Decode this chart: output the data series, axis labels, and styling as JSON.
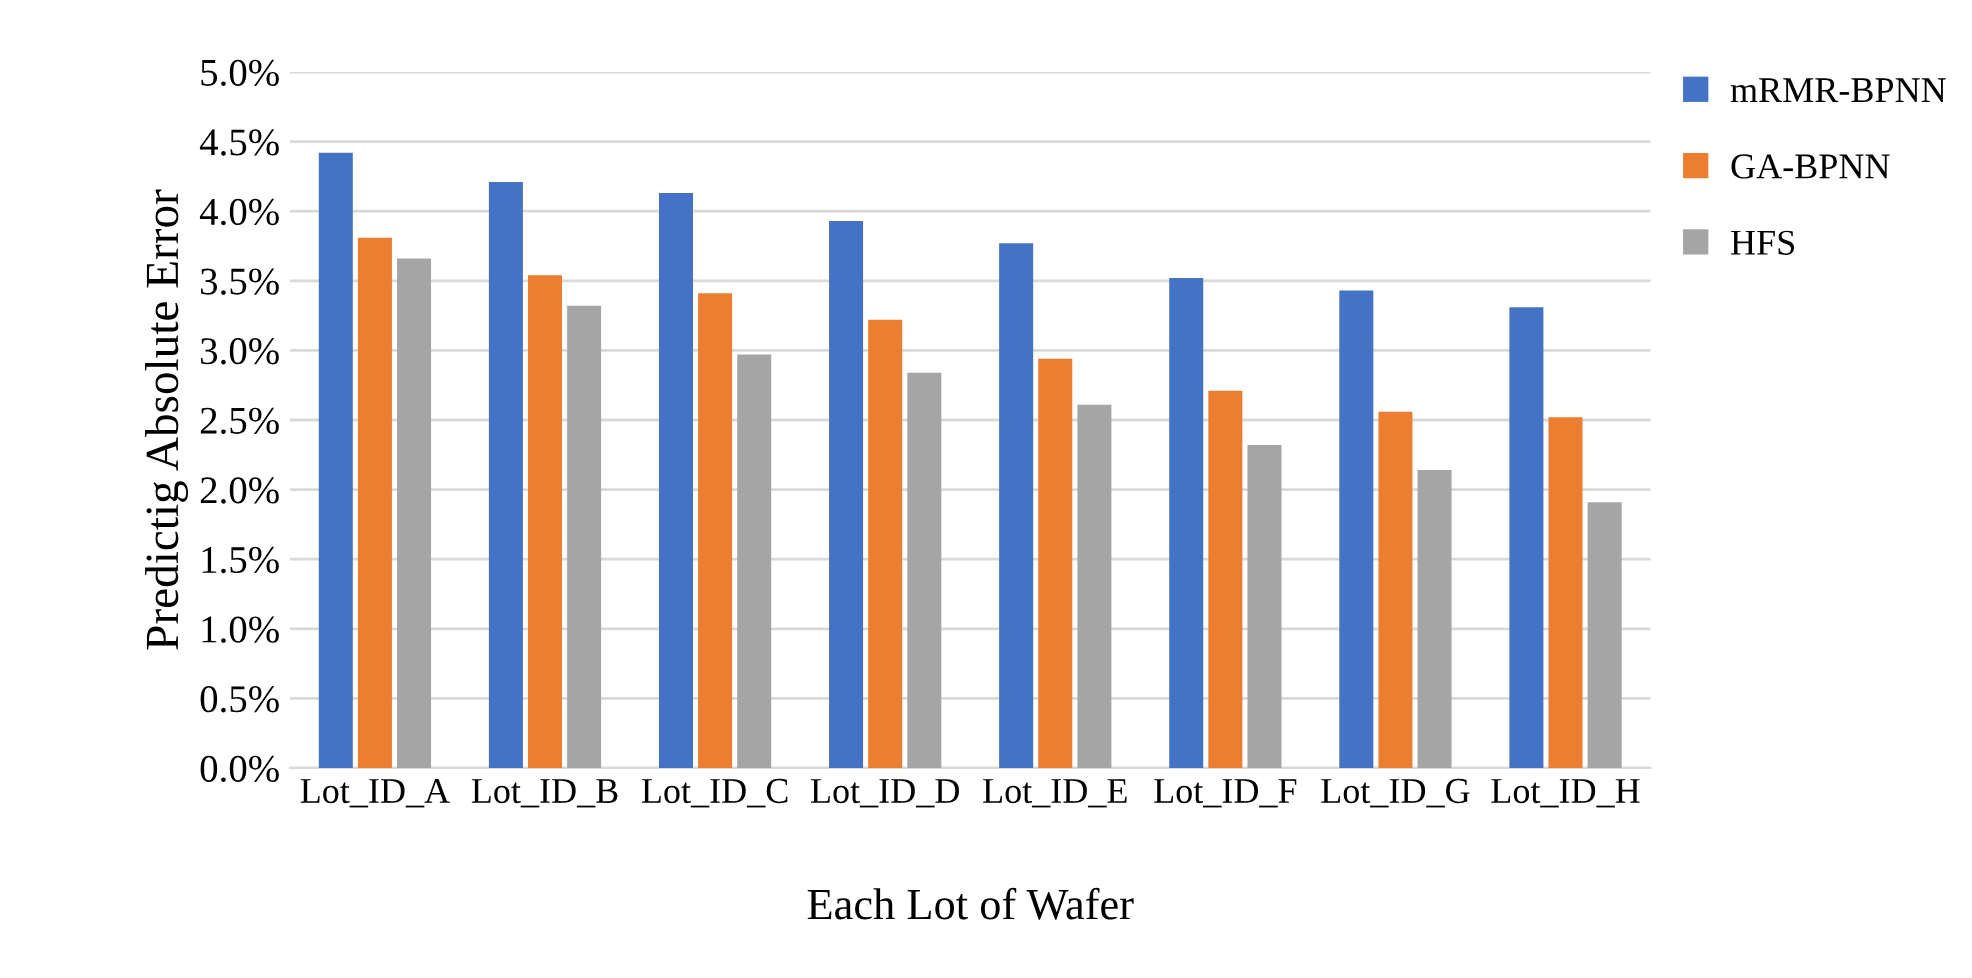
{
  "chart_data": {
    "type": "bar",
    "xlabel": "Each Lot of Wafer",
    "ylabel": "Predictig Absolute Error",
    "categories": [
      "Lot_ID_A",
      "Lot_ID_B",
      "Lot_ID_C",
      "Lot_ID_D",
      "Lot_ID_E",
      "Lot_ID_F",
      "Lot_ID_G",
      "Lot_ID_H"
    ],
    "series": [
      {
        "name": "mRMR-BPNN",
        "color": "#4472c4",
        "values": [
          4.42,
          4.21,
          4.13,
          3.93,
          3.77,
          3.52,
          3.43,
          3.31
        ]
      },
      {
        "name": "GA-BPNN",
        "color": "#ed7d31",
        "values": [
          3.81,
          3.54,
          3.41,
          3.22,
          2.94,
          2.71,
          2.56,
          2.52
        ]
      },
      {
        "name": "HFS",
        "color": "#a5a5a5",
        "values": [
          3.66,
          3.32,
          2.97,
          2.84,
          2.61,
          2.32,
          2.14,
          1.91
        ]
      }
    ],
    "ylim": [
      0,
      5
    ],
    "yticks": [
      {
        "value": 0,
        "label": "0.0%"
      },
      {
        "value": 0.5,
        "label": "0.5%"
      },
      {
        "value": 1,
        "label": "1.0%"
      },
      {
        "value": 1.5,
        "label": "1.5%"
      },
      {
        "value": 2,
        "label": "2.0%"
      },
      {
        "value": 2.5,
        "label": "2.5%"
      },
      {
        "value": 3,
        "label": "3.0%"
      },
      {
        "value": 3.5,
        "label": "3.5%"
      },
      {
        "value": 4,
        "label": "4.0%"
      },
      {
        "value": 4.5,
        "label": "4.5%"
      },
      {
        "value": 5,
        "label": "5.0%"
      }
    ],
    "grid": "y",
    "legend": "top right"
  }
}
